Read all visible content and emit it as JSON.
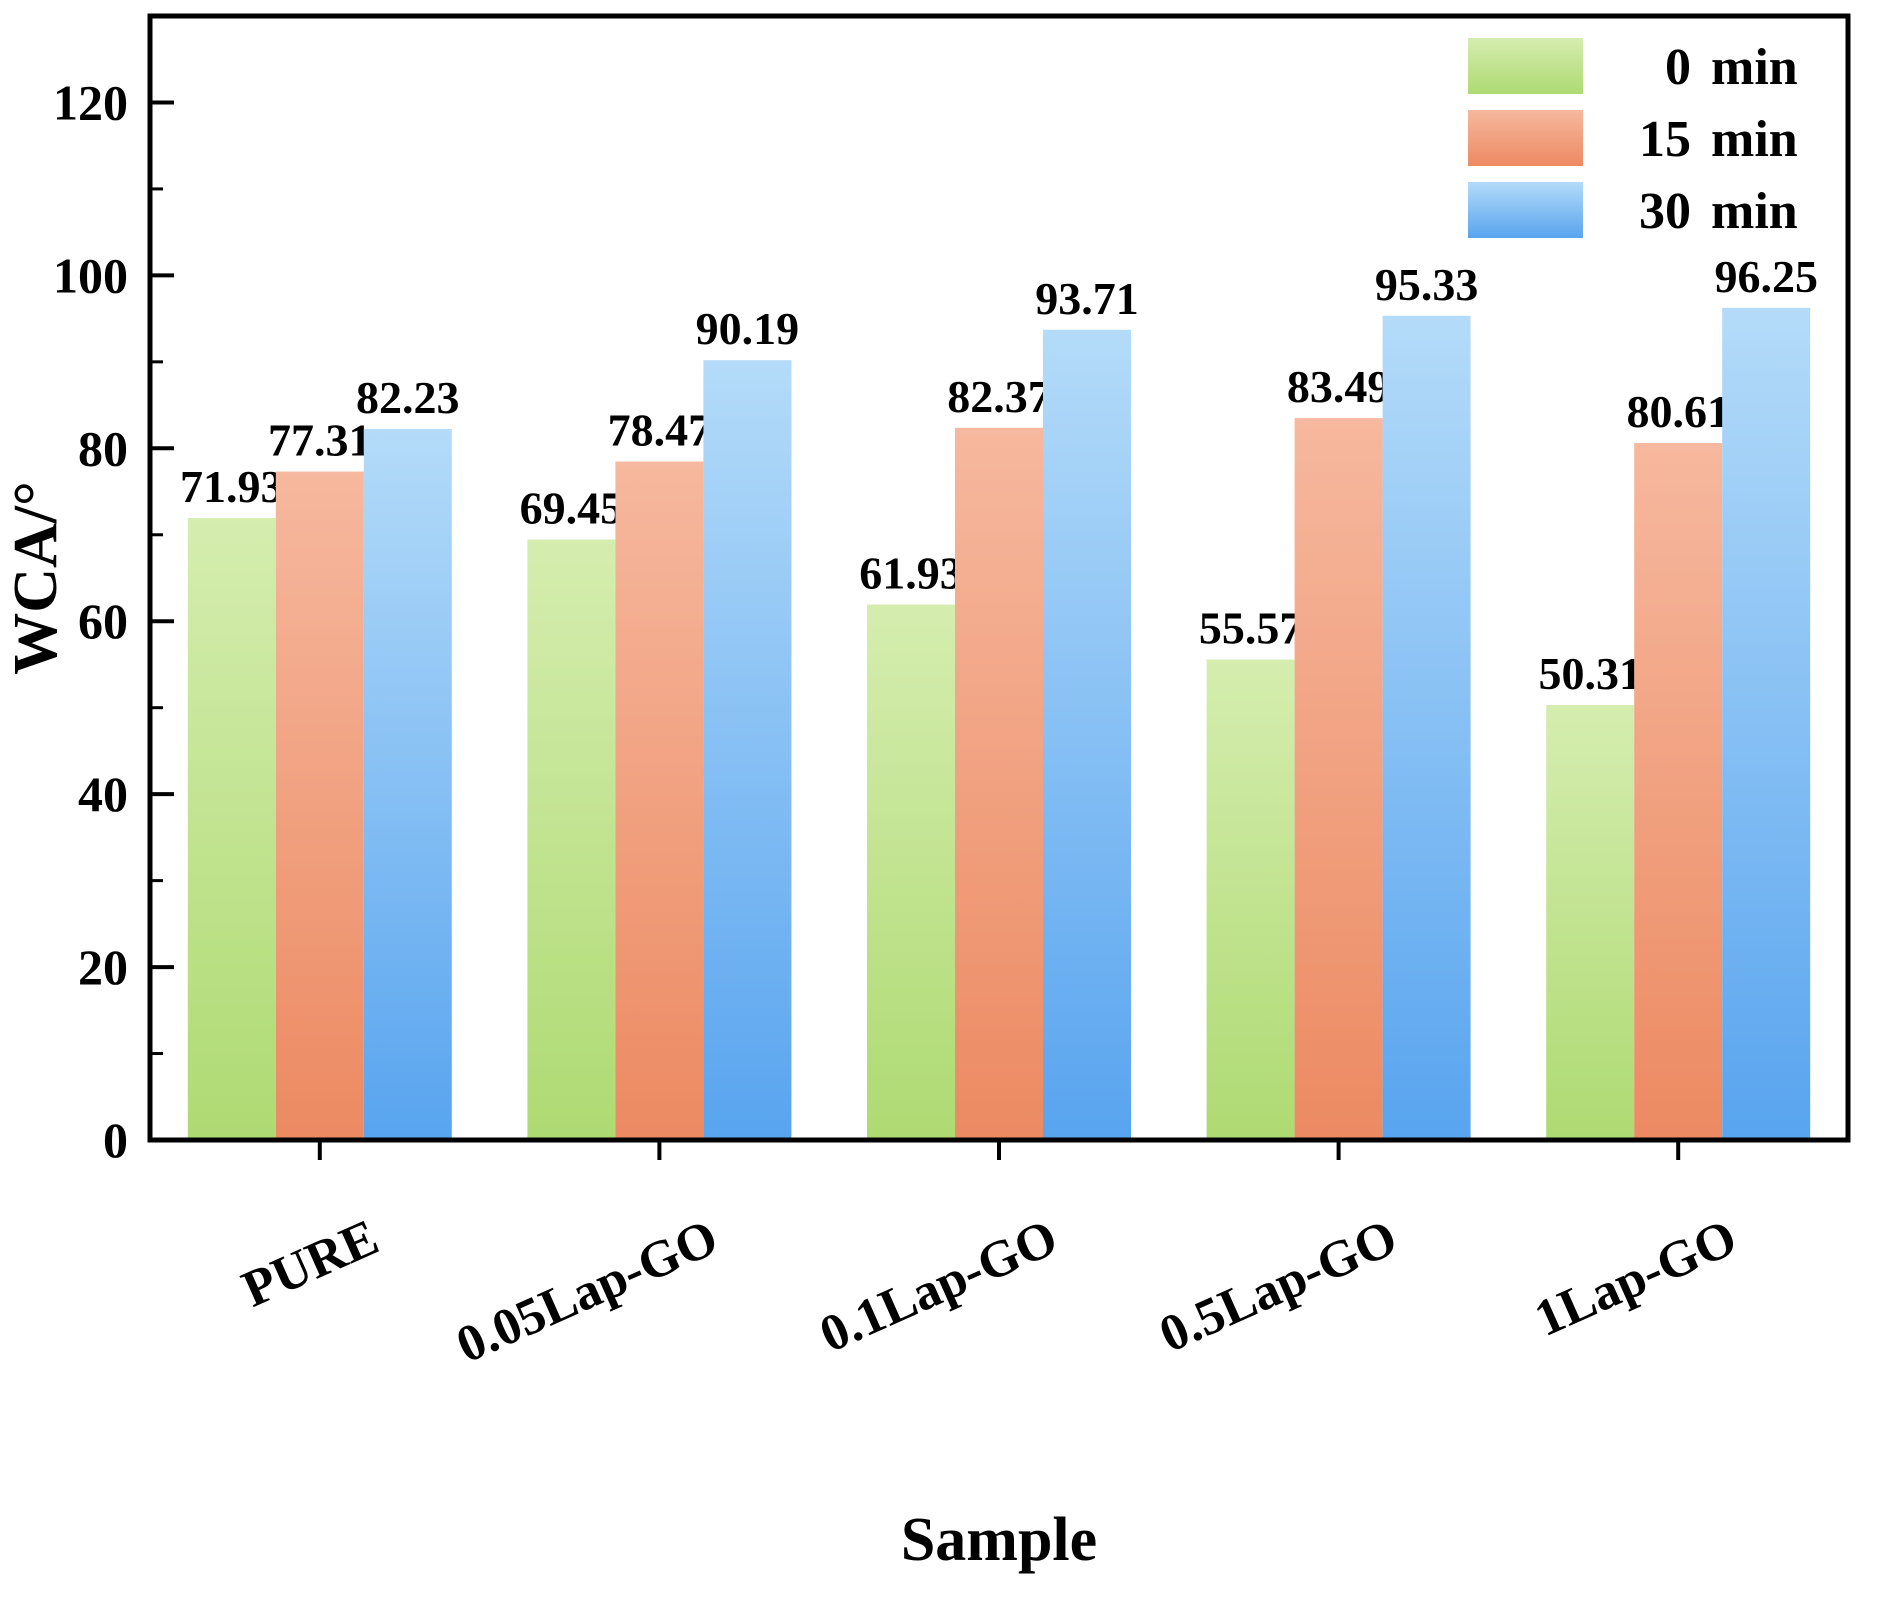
{
  "chart_data": {
    "type": "bar",
    "title": "",
    "xlabel": "Sample",
    "ylabel": "WCA/°",
    "categories": [
      "PURE",
      "0.05Lap-GO",
      "0.1Lap-GO",
      "0.5Lap-GO",
      "1Lap-GO"
    ],
    "series": [
      {
        "name": "0 min",
        "values": [
          71.93,
          69.45,
          61.93,
          55.57,
          50.31
        ],
        "gradient": [
          "#d5edaf",
          "#aeda72"
        ]
      },
      {
        "name": "15 min",
        "values": [
          77.31,
          78.47,
          82.37,
          83.49,
          80.61
        ],
        "gradient": [
          "#f6b89e",
          "#ec8a62"
        ]
      },
      {
        "name": "30 min",
        "values": [
          82.23,
          90.19,
          93.71,
          95.33,
          96.25
        ],
        "gradient": [
          "#b4dbf9",
          "#58a4ef"
        ]
      }
    ],
    "ylim": [
      0,
      130
    ],
    "yticks": [
      0,
      20,
      40,
      60,
      80,
      100,
      120
    ],
    "grid": false,
    "legend_position": "upper right",
    "value_label_decimals": 2,
    "frame_color": "#000000",
    "text_color": "#000000"
  }
}
